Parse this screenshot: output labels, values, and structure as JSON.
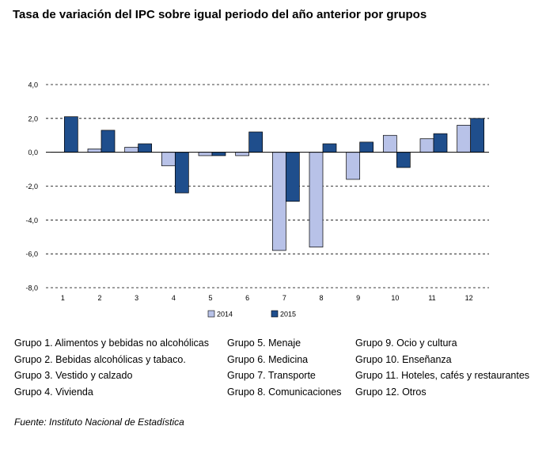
{
  "title": "Tasa de variación del IPC sobre igual periodo del año anterior por grupos",
  "source": "Fuente: Instituto Nacional de Estadística",
  "colors": {
    "series_2014": "#b8c2e8",
    "series_2015": "#1f4e8c"
  },
  "groups": {
    "col1": [
      "Grupo 1. Alimentos y bebidas no alcohólicas",
      "Grupo 2. Bebidas alcohólicas y  tabaco.",
      "Grupo 3. Vestido y calzado",
      "Grupo 4. Vivienda"
    ],
    "col2": [
      "Grupo 5. Menaje",
      "Grupo 6. Medicina",
      "Grupo 7. Transporte",
      "Grupo 8. Comunicaciones"
    ],
    "col3": [
      "Grupo 9. Ocio y cultura",
      "Grupo 10. Enseñanza",
      "Grupo 11. Hoteles, cafés y restaurantes",
      "Grupo 12. Otros"
    ]
  },
  "chart_data": {
    "type": "bar",
    "title": "Tasa de variación del IPC sobre igual periodo del año anterior por grupos",
    "categories": [
      "1",
      "2",
      "3",
      "4",
      "5",
      "6",
      "7",
      "8",
      "9",
      "10",
      "11",
      "12"
    ],
    "series": [
      {
        "name": "2014",
        "values": [
          0.0,
          0.2,
          0.3,
          -0.8,
          -0.2,
          -0.2,
          -5.8,
          -5.6,
          -1.6,
          1.0,
          0.8,
          1.6
        ]
      },
      {
        "name": "2015",
        "values": [
          2.1,
          1.3,
          0.5,
          -2.4,
          -0.2,
          1.2,
          -2.9,
          0.5,
          0.6,
          -0.9,
          1.1,
          2.0
        ]
      }
    ],
    "ylim": [
      -8,
      4
    ],
    "yticks": [
      "4,0",
      "2,0",
      "0,0",
      "-2,0",
      "-4,0",
      "-6,0",
      "-8,0"
    ],
    "ytick_values": [
      4,
      2,
      0,
      -2,
      -4,
      -6,
      -8
    ],
    "gridlines": "dashed",
    "legend_position": "bottom"
  }
}
